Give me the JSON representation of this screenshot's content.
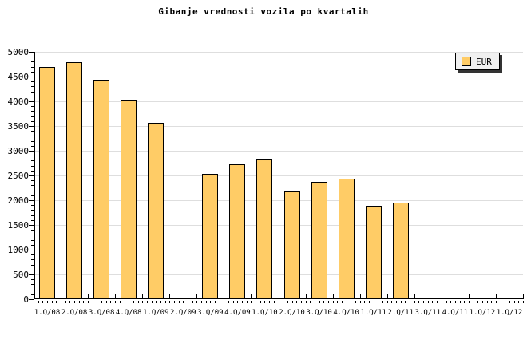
{
  "title": "Gibanje vrednosti vozila po kvartalih",
  "legend": {
    "label": "EUR"
  },
  "colors": {
    "background": "#FFFFFF",
    "bar_fill": "#FFCC66",
    "bar_border": "#000000",
    "gridline": "#DEDEDE",
    "axis": "#000000",
    "legend_bg": "#F0F0F0",
    "legend_shadow": "#333333"
  },
  "chart_data": {
    "type": "bar",
    "title": "Gibanje vrednosti vozila po kvartalih",
    "categories": [
      "1.Q/08",
      "2.Q/08",
      "3.Q/08",
      "4.Q/08",
      "1.Q/09",
      "2.Q/09",
      "3.Q/09",
      "4.Q/09",
      "1.Q/10",
      "2.Q/10",
      "3.Q/10",
      "4.Q/10",
      "1.Q/11",
      "2.Q/11",
      "3.Q/11",
      "4.Q/11",
      "1.Q/12",
      "1.Q/12"
    ],
    "series": [
      {
        "name": "EUR",
        "values": [
          4700,
          4790,
          4440,
          4040,
          3560,
          null,
          2530,
          2730,
          2840,
          2180,
          2370,
          2440,
          1890,
          1950,
          null,
          null,
          null,
          null
        ]
      }
    ],
    "xlabel": "",
    "ylabel": "",
    "ylim": [
      0,
      5000
    ],
    "ytick_major": 500,
    "ytick_minor": 100,
    "ytick_labels": [
      "0",
      "500",
      "1000",
      "1500",
      "2000",
      "2500",
      "3000",
      "3500",
      "4000",
      "4500",
      "5000"
    ],
    "grid": "horizontal-major",
    "legend_position": "top-right"
  }
}
